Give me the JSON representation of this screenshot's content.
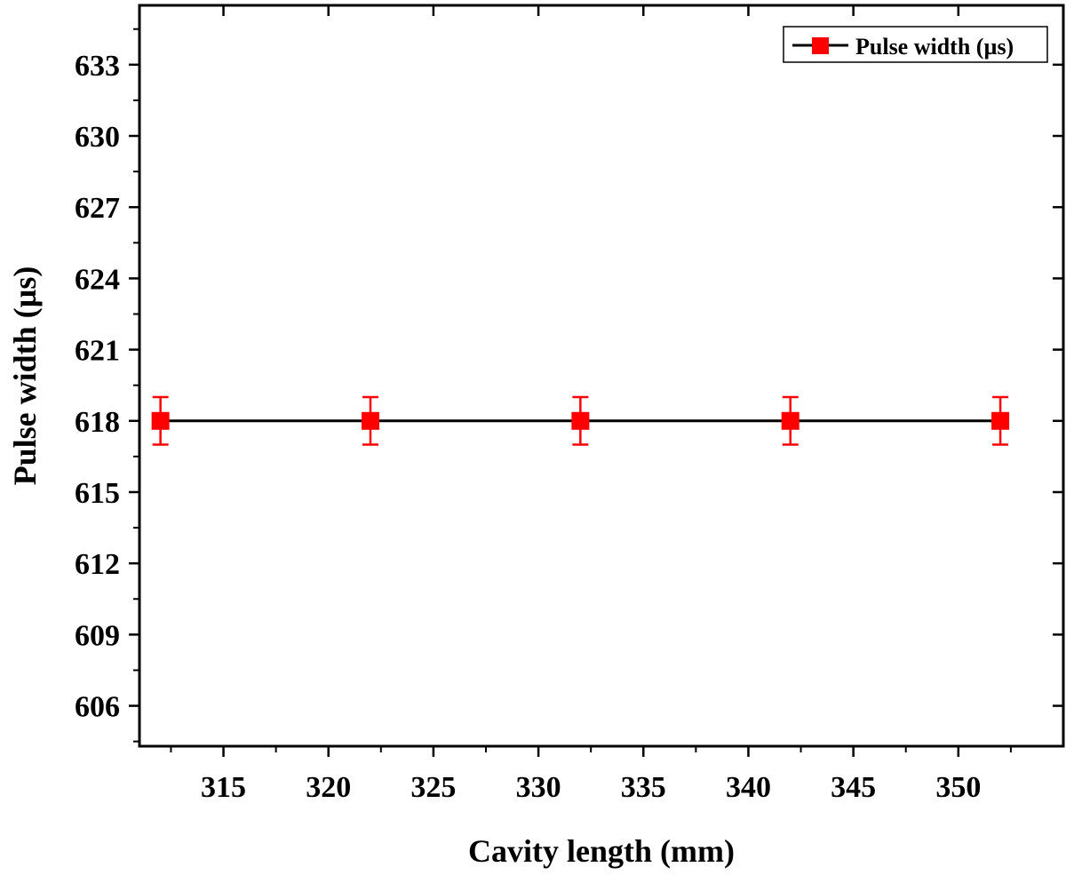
{
  "chart_data": {
    "type": "line",
    "xlabel": "Cavity length (mm)",
    "ylabel": "Pulse width (µs)",
    "xlim": [
      311,
      355
    ],
    "ylim": [
      604.3,
      635.5
    ],
    "x_ticks": [
      315,
      320,
      325,
      330,
      335,
      340,
      345,
      350
    ],
    "x_minor_ticks": [
      312.5,
      317.5,
      322.5,
      327.5,
      332.5,
      337.5,
      342.5,
      347.5,
      352.5
    ],
    "y_ticks": [
      606,
      609,
      612,
      615,
      618,
      621,
      624,
      627,
      630,
      633
    ],
    "y_minor_ticks": [
      604.5,
      607.5,
      610.5,
      613.5,
      616.5,
      619.5,
      622.5,
      625.5,
      628.5,
      631.5,
      634.5
    ],
    "series": [
      {
        "name": "Pulse width (µs)",
        "x": [
          312,
          322,
          332,
          342,
          352
        ],
        "y": [
          618,
          618,
          618,
          618,
          618
        ],
        "error": [
          1,
          1,
          1,
          1,
          1
        ],
        "line_color": "#000000",
        "marker": "square",
        "marker_color": "#ff0000"
      }
    ],
    "legend_position": "top-right",
    "grid": false
  }
}
